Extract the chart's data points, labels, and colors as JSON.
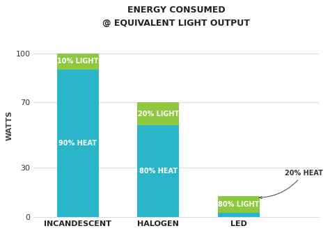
{
  "title_line1": "ENERGY CONSUMED",
  "title_line2": "@ EQUIVALENT LIGHT OUTPUT",
  "categories": [
    "INCANDESCENT",
    "HALOGEN",
    "LED"
  ],
  "heat_values": [
    90,
    56,
    2.5
  ],
  "light_values": [
    10,
    14,
    10
  ],
  "heat_color": "#2ab5c8",
  "light_color": "#8dc83f",
  "heat_labels": [
    "90% HEAT",
    "80% HEAT",
    null
  ],
  "light_labels": [
    "10% LIGHT",
    "20% LIGHT",
    "80% LIGHT"
  ],
  "led_annotation": "20% HEAT",
  "ylabel": "WATTS",
  "yticks": [
    0,
    30,
    70,
    100
  ],
  "bar_width": 0.52,
  "bg_color": "#ffffff",
  "title_fontsize": 9,
  "ylabel_fontsize": 8,
  "bar_label_fontsize": 7,
  "tick_fontsize": 8,
  "annotation_fontsize": 7
}
